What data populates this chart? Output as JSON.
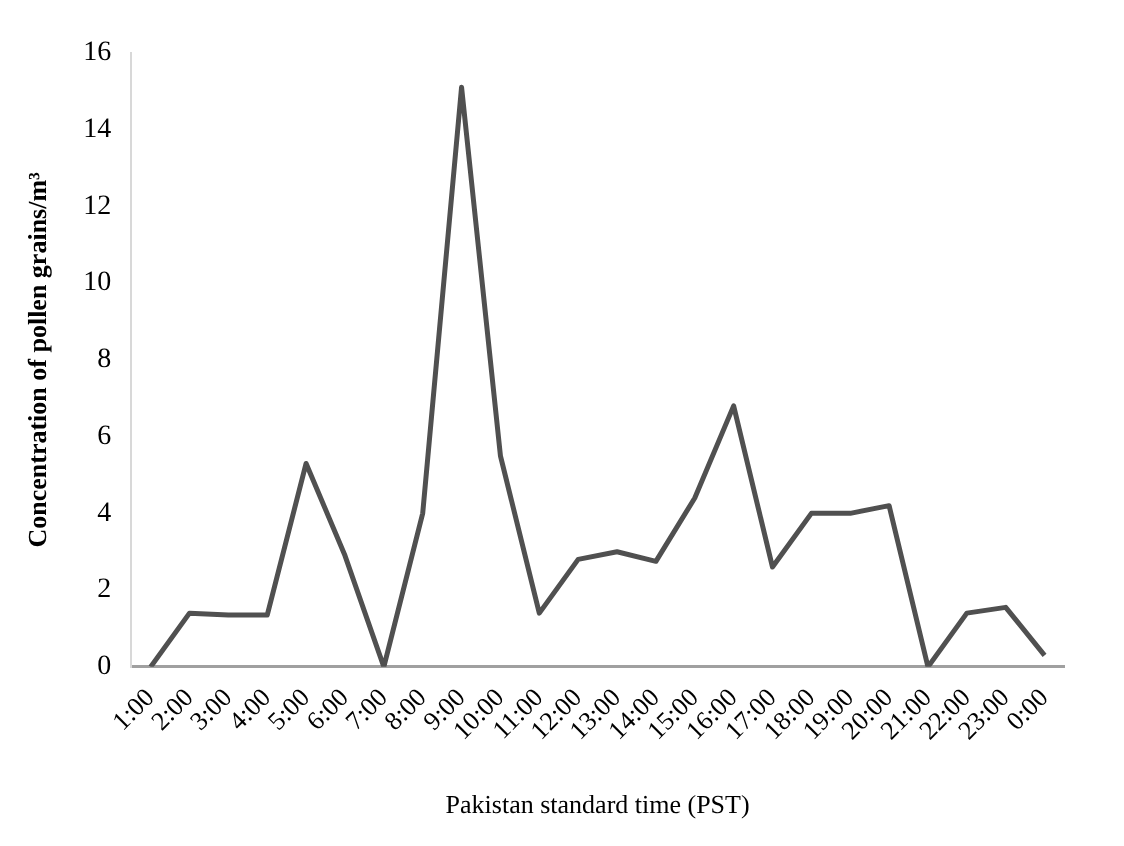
{
  "chart_data": {
    "type": "line",
    "xlabel": "Pakistan standard time (PST)",
    "ylabel": "Concentration of pollen grains/m³",
    "categories": [
      "1:00",
      "2:00",
      "3:00",
      "4:00",
      "5:00",
      "6:00",
      "7:00",
      "8:00",
      "9:00",
      "10:00",
      "11:00",
      "12:00",
      "13:00",
      "14:00",
      "15:00",
      "16:00",
      "17:00",
      "18:00",
      "19:00",
      "20:00",
      "21:00",
      "22:00",
      "23:00",
      "0:00"
    ],
    "series": [
      {
        "color": "#505050",
        "values": [
          0,
          1.4,
          1.35,
          1.35,
          5.3,
          2.9,
          0,
          4.0,
          15.1,
          5.5,
          1.4,
          2.8,
          3.0,
          2.75,
          4.4,
          6.8,
          2.6,
          4.0,
          4.0,
          4.2,
          0,
          1.4,
          1.55,
          0.3
        ]
      }
    ],
    "ylim": [
      0,
      16
    ],
    "yticks": [
      0,
      2,
      4,
      6,
      8,
      10,
      12,
      14,
      16
    ],
    "grid": false,
    "legend": false,
    "marker": "none",
    "line_style": "solid"
  }
}
